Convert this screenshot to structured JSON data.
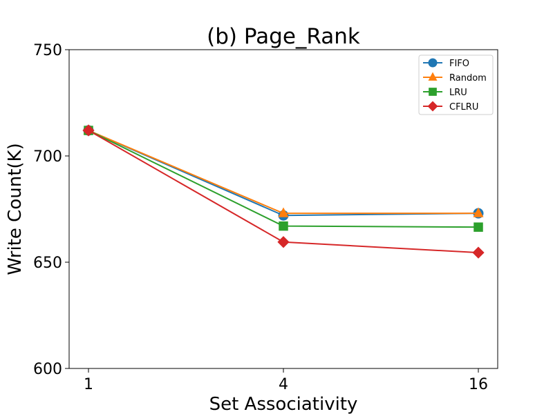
{
  "chart_data": {
    "type": "line",
    "title": "(b) Page_Rank",
    "xlabel": "Set Associativity",
    "ylabel": "Write Count(K)",
    "categories": [
      "1",
      "4",
      "16"
    ],
    "ylim": [
      600,
      750
    ],
    "yticks": [
      600,
      650,
      700,
      750
    ],
    "grid": false,
    "legend_position": "top-right",
    "series": [
      {
        "name": "FIFO",
        "values": [
          712,
          672,
          673
        ],
        "color": "#1f77b4",
        "marker": "circle"
      },
      {
        "name": "Random",
        "values": [
          712,
          673,
          673
        ],
        "color": "#ff7f0e",
        "marker": "triangle"
      },
      {
        "name": "LRU",
        "values": [
          712,
          667,
          666.5
        ],
        "color": "#2ca02c",
        "marker": "square"
      },
      {
        "name": "CFLRU",
        "values": [
          712,
          659.5,
          654.5
        ],
        "color": "#d62728",
        "marker": "diamond"
      }
    ]
  }
}
